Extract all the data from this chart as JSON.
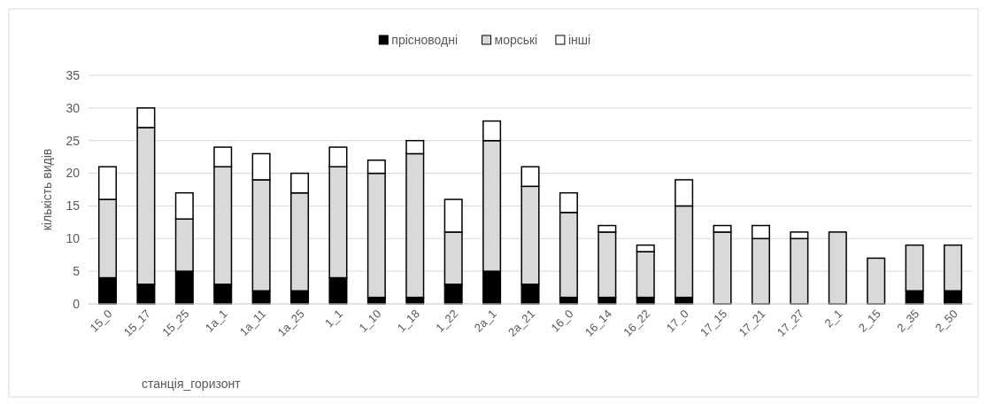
{
  "chart_data": {
    "type": "bar",
    "stacked": true,
    "xlabel": "станція_горизонт",
    "ylabel": "кількість видів",
    "categories": [
      "15_0",
      "15_17",
      "15_25",
      "1a_1",
      "1a_11",
      "1a_25",
      "1_1",
      "1_10",
      "1_18",
      "1_22",
      "2a_1",
      "2a_21",
      "16_0",
      "16_14",
      "16_22",
      "17_0",
      "17_15",
      "17_21",
      "17_27",
      "2_1",
      "2_15",
      "2_35",
      "2_50"
    ],
    "series": [
      {
        "name": "прісноводні",
        "color": "#000000",
        "values": [
          4,
          3,
          5,
          3,
          2,
          2,
          4,
          1,
          1,
          3,
          5,
          3,
          1,
          1,
          1,
          1,
          0,
          0,
          0,
          0,
          0,
          2,
          2
        ]
      },
      {
        "name": "морські",
        "color": "#d9d9d9",
        "values": [
          12,
          24,
          8,
          18,
          17,
          15,
          17,
          19,
          22,
          8,
          20,
          15,
          13,
          10,
          7,
          14,
          11,
          10,
          10,
          11,
          7,
          7,
          7
        ]
      },
      {
        "name": "інші",
        "color": "#ffffff",
        "values": [
          5,
          3,
          4,
          3,
          4,
          3,
          3,
          2,
          2,
          5,
          3,
          3,
          3,
          1,
          1,
          4,
          1,
          2,
          1,
          0,
          0,
          0,
          0
        ]
      }
    ],
    "ylim": [
      0,
      35
    ],
    "yticks": [
      0,
      5,
      10,
      15,
      20,
      25,
      30,
      35
    ],
    "grid": "y",
    "legend": "top"
  }
}
